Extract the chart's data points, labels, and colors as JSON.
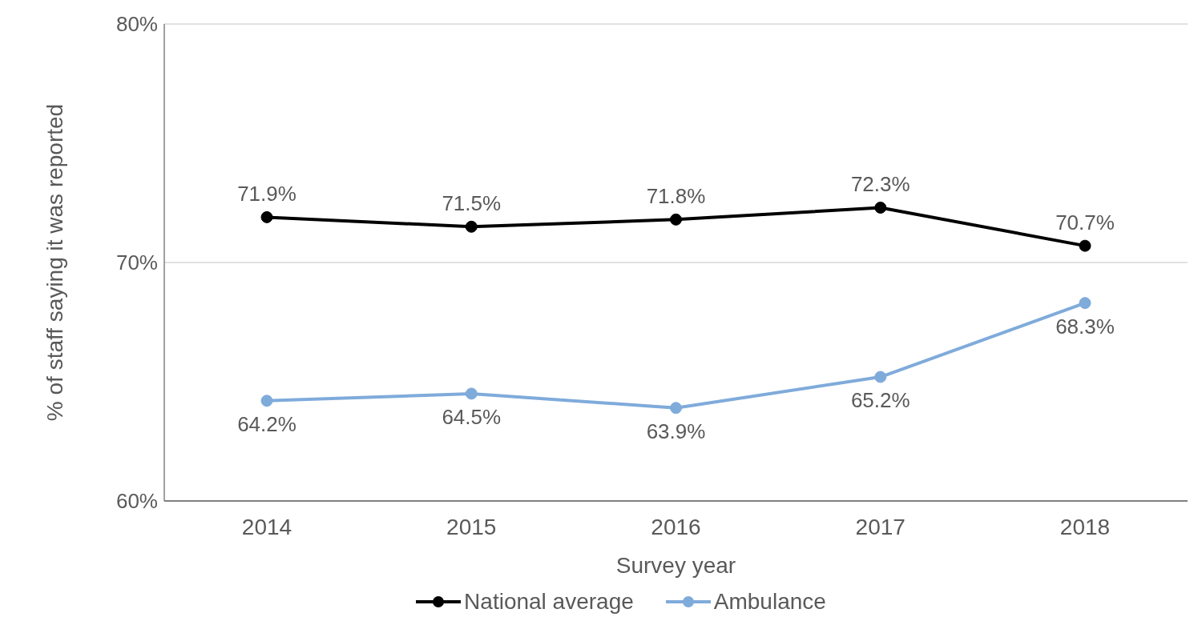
{
  "chart_data": {
    "type": "line",
    "xlabel": "Survey year",
    "ylabel": "% of staff saying it was reported",
    "categories": [
      "2014",
      "2015",
      "2016",
      "2017",
      "2018"
    ],
    "series": [
      {
        "name": "National average",
        "color": "#000000",
        "values": [
          71.9,
          71.5,
          71.8,
          72.3,
          70.7
        ],
        "value_labels": [
          "71.9%",
          "71.5%",
          "71.8%",
          "72.3%",
          "70.7%"
        ]
      },
      {
        "name": "Ambulance",
        "color": "#7fabdb",
        "values": [
          64.2,
          64.5,
          63.9,
          65.2,
          68.3
        ],
        "value_labels": [
          "64.2%",
          "64.5%",
          "63.9%",
          "65.2%",
          "68.3%"
        ]
      }
    ],
    "ylim": [
      60,
      80
    ],
    "yticks": [
      {
        "value": 60,
        "label": "60%"
      },
      {
        "value": 70,
        "label": "70%"
      },
      {
        "value": 80,
        "label": "80%"
      }
    ],
    "grid": "y",
    "legend": "bottom",
    "marker": "circle",
    "line_style": "solid"
  }
}
